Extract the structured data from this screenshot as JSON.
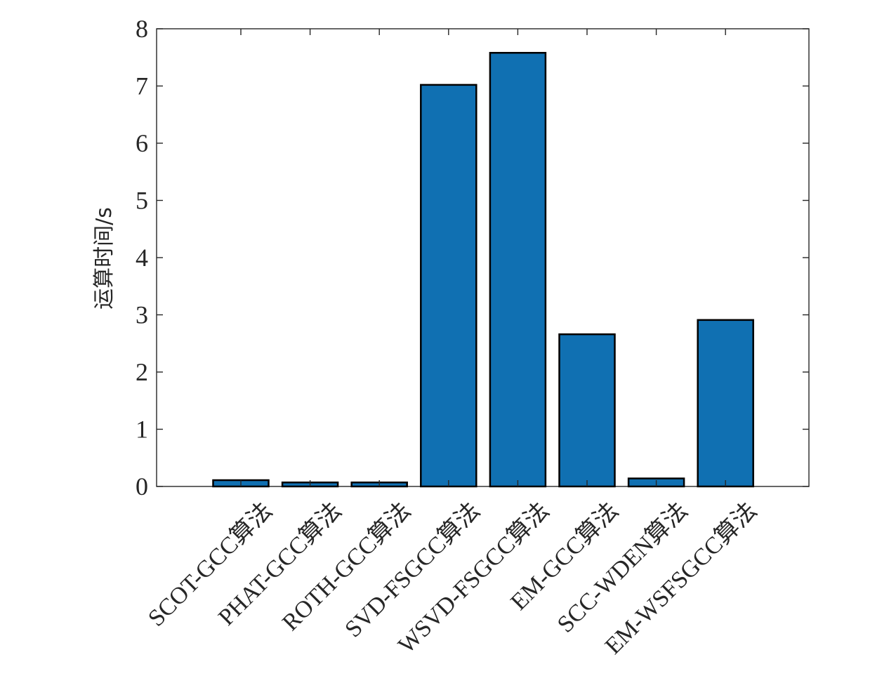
{
  "chart_data": {
    "type": "bar",
    "title": "",
    "xlabel": "",
    "ylabel": "运算时间/s",
    "categories": [
      "SCOT-GCC算法",
      "PHAT-GCC算法",
      "ROTH-GCC算法",
      "SVD-FSGCC算法",
      "WSVD-FSGCC算法",
      "EM-GCC算法",
      "SCC-WDEN算法",
      "EM-WSFSGCC算法"
    ],
    "values": [
      0.11,
      0.07,
      0.07,
      7.02,
      7.58,
      2.66,
      0.14,
      2.91
    ],
    "ylim": [
      0,
      8
    ],
    "yticks": [
      "0",
      "1",
      "2",
      "3",
      "4",
      "5",
      "6",
      "7",
      "8"
    ],
    "bar_color": "#1070B2",
    "grid": false,
    "legend": "none"
  }
}
